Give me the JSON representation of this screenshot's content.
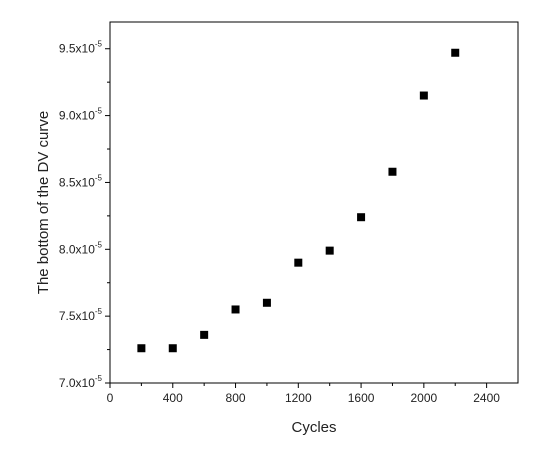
{
  "chart_data": {
    "type": "scatter",
    "title": "",
    "xlabel": "Cycles",
    "ylabel": "The bottom of the DV curve",
    "xlim": [
      0,
      2600
    ],
    "ylim": [
      7e-05,
      9.7e-05
    ],
    "grid": false,
    "legend": "none",
    "marker": "square",
    "marker_color": "#000000",
    "x_ticks": [
      0,
      400,
      800,
      1200,
      1600,
      2000,
      2400
    ],
    "x_tick_labels": [
      "0",
      "400",
      "800",
      "1200",
      "1600",
      "2000",
      "2400"
    ],
    "y_ticks": [
      7e-05,
      7.5e-05,
      8e-05,
      8.5e-05,
      9e-05,
      9.5e-05
    ],
    "y_tick_labels": [
      {
        "mantissa": "7.0x10",
        "exponent": "-5"
      },
      {
        "mantissa": "7.5x10",
        "exponent": "-5"
      },
      {
        "mantissa": "8.0x10",
        "exponent": "-5"
      },
      {
        "mantissa": "8.5x10",
        "exponent": "-5"
      },
      {
        "mantissa": "9.0x10",
        "exponent": "-5"
      },
      {
        "mantissa": "9.5x10",
        "exponent": "-5"
      }
    ],
    "series": [
      {
        "x": [
          200,
          400,
          600,
          800,
          1000,
          1200,
          1400,
          1600,
          1800,
          2000,
          2200
        ],
        "y": [
          7.26e-05,
          7.26e-05,
          7.36e-05,
          7.55e-05,
          7.6e-05,
          7.9e-05,
          7.99e-05,
          8.24e-05,
          8.58e-05,
          9.15e-05,
          9.47e-05
        ]
      }
    ]
  }
}
